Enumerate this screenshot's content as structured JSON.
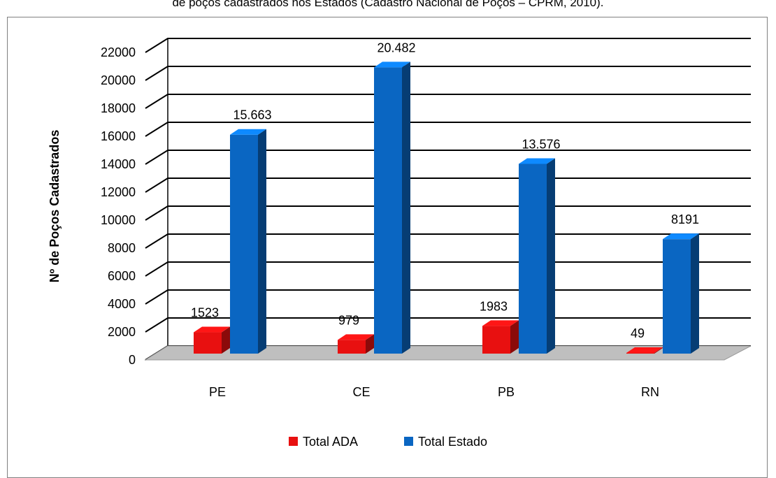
{
  "caption": "de poços cadastrados nos Estados (Cadastro Nacional de Poços – CPRM, 2010).",
  "colors": {
    "ada": "#e81010",
    "estado": "#0a66c2",
    "floor": "#bfbfbf",
    "grid": "#000000"
  },
  "chart_data": {
    "type": "bar",
    "title": "",
    "xlabel": "",
    "ylabel": "Nº de Poços Cadastrados",
    "ylim": [
      0,
      22000
    ],
    "yticks": [
      0,
      2000,
      4000,
      6000,
      8000,
      10000,
      12000,
      14000,
      16000,
      18000,
      20000,
      22000
    ],
    "categories": [
      "PE",
      "CE",
      "PB",
      "RN"
    ],
    "grid": true,
    "legend": "bottom",
    "series": [
      {
        "name": "Total ADA",
        "values": [
          1523,
          979,
          1983,
          49
        ],
        "labels": [
          "1523",
          "979",
          "1983",
          "49"
        ]
      },
      {
        "name": "Total Estado",
        "values": [
          15663,
          20482,
          13576,
          8191
        ],
        "labels": [
          "15.663",
          "20.482",
          "13.576",
          "8191"
        ]
      }
    ]
  }
}
